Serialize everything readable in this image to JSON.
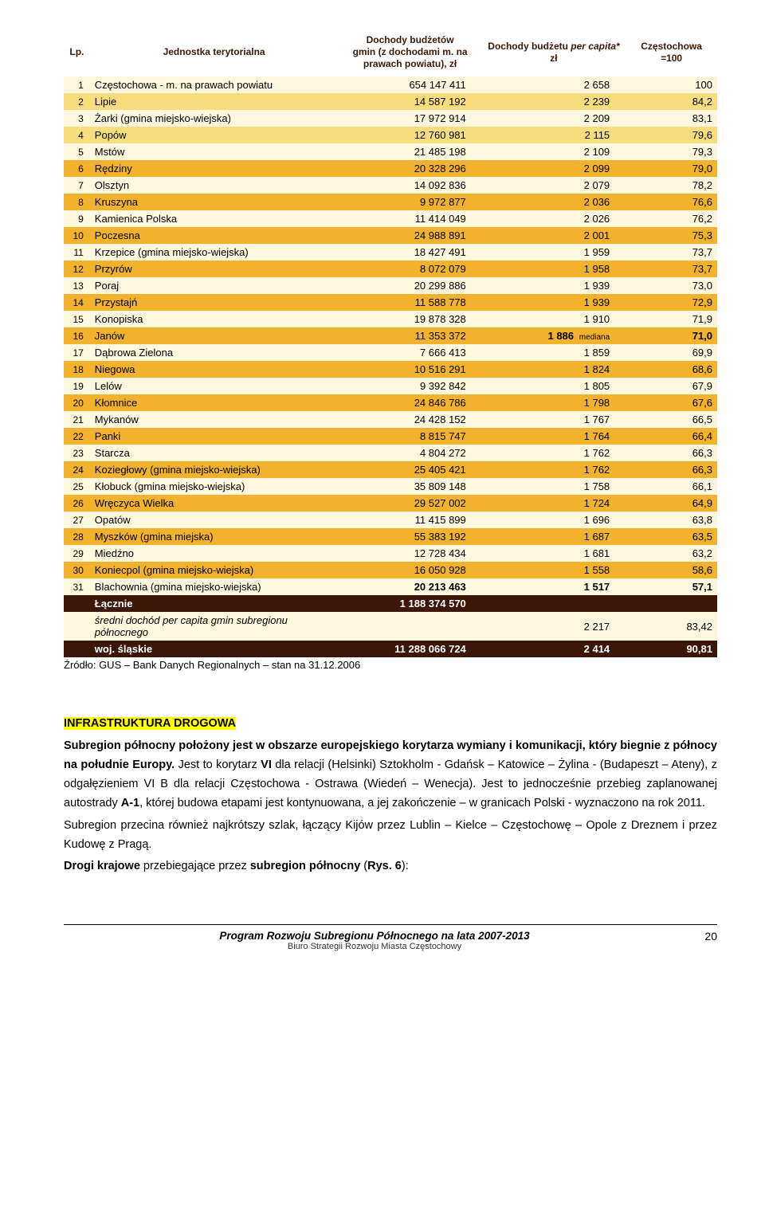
{
  "header": {
    "lp": "Lp.",
    "jednostka": "Jednostka terytorialna",
    "col1_a": "Dochody budżetów",
    "col1_b": "gmin",
    "col1_c": " (z dochodami m. na prawach powiatu), zł",
    "col2_a": "Dochody budżetu ",
    "col2_b": "per capita*",
    "col2_c": "zł",
    "col3_a": "Częstochowa",
    "col3_b": "=100"
  },
  "rows": [
    {
      "lp": "1",
      "name": "Częstochowa - m. na prawach powiatu",
      "v1": "654 147 411",
      "v2": "2 658",
      "v3": "100",
      "shade": "light",
      "boldName": false
    },
    {
      "lp": "2",
      "name": "Lipie",
      "v1": "14 587 192",
      "v2": "2 239",
      "v3": "84,2",
      "shade": "mid"
    },
    {
      "lp": "3",
      "name": "Żarki (gmina miejsko-wiejska)",
      "v1": "17 972 914",
      "v2": "2 209",
      "v3": "83,1",
      "shade": "light"
    },
    {
      "lp": "4",
      "name": "Popów",
      "v1": "12 760 981",
      "v2": "2 115",
      "v3": "79,6",
      "shade": "mid"
    },
    {
      "lp": "5",
      "name": "Mstów",
      "v1": "21 485 198",
      "v2": "2 109",
      "v3": "79,3",
      "shade": "light"
    },
    {
      "lp": "6",
      "name": "Rędziny",
      "v1": "20 328 296",
      "v2": "2 099",
      "v3": "79,0",
      "shade": "dark"
    },
    {
      "lp": "7",
      "name": "Olsztyn",
      "v1": "14 092 836",
      "v2": "2 079",
      "v3": "78,2",
      "shade": "light"
    },
    {
      "lp": "8",
      "name": "Kruszyna",
      "v1": "9 972 877",
      "v2": "2 036",
      "v3": "76,6",
      "shade": "dark"
    },
    {
      "lp": "9",
      "name": "Kamienica Polska",
      "v1": "11 414 049",
      "v2": "2 026",
      "v3": "76,2",
      "shade": "light"
    },
    {
      "lp": "10",
      "name": "Poczesna",
      "v1": "24 988 891",
      "v2": "2 001",
      "v3": "75,3",
      "shade": "dark"
    },
    {
      "lp": "11",
      "name": "Krzepice (gmina miejsko-wiejska)",
      "v1": "18 427 491",
      "v2": "1 959",
      "v3": "73,7",
      "shade": "light"
    },
    {
      "lp": "12",
      "name": "Przyrów",
      "v1": "8 072 079",
      "v2": "1 958",
      "v3": "73,7",
      "shade": "dark"
    },
    {
      "lp": "13",
      "name": "Poraj",
      "v1": "20 299 886",
      "v2": "1 939",
      "v3": "73,0",
      "shade": "light"
    },
    {
      "lp": "14",
      "name": "Przystajń",
      "v1": "11 588 778",
      "v2": "1 939",
      "v3": "72,9",
      "shade": "dark"
    },
    {
      "lp": "15",
      "name": "Konopiska",
      "v1": "19 878 328",
      "v2": "1 910",
      "v3": "71,9",
      "shade": "light"
    },
    {
      "lp": "16",
      "name": "Janów",
      "v1": "11 353 372",
      "v2": "1 886",
      "v2note": "mediana",
      "v3": "71,0",
      "shade": "dark",
      "median": true
    },
    {
      "lp": "17",
      "name": "Dąbrowa Zielona",
      "v1": "7 666 413",
      "v2": "1 859",
      "v3": "69,9",
      "shade": "light"
    },
    {
      "lp": "18",
      "name": "Niegowa",
      "v1": "10 516 291",
      "v2": "1 824",
      "v3": "68,6",
      "shade": "dark"
    },
    {
      "lp": "19",
      "name": "Lelów",
      "v1": "9 392 842",
      "v2": "1 805",
      "v3": "67,9",
      "shade": "light"
    },
    {
      "lp": "20",
      "name": "Kłomnice",
      "v1": "24 846 786",
      "v2": "1 798",
      "v3": "67,6",
      "shade": "dark"
    },
    {
      "lp": "21",
      "name": "Mykanów",
      "v1": "24 428 152",
      "v2": "1 767",
      "v3": "66,5",
      "shade": "light"
    },
    {
      "lp": "22",
      "name": "Panki",
      "v1": "8 815 747",
      "v2": "1 764",
      "v3": "66,4",
      "shade": "dark"
    },
    {
      "lp": "23",
      "name": "Starcza",
      "v1": "4 804 272",
      "v2": "1 762",
      "v3": "66,3",
      "shade": "light"
    },
    {
      "lp": "24",
      "name": "Koziegłowy (gmina miejsko-wiejska)",
      "v1": "25 405 421",
      "v2": "1 762",
      "v3": "66,3",
      "shade": "dark"
    },
    {
      "lp": "25",
      "name": "Kłobuck (gmina miejsko-wiejska)",
      "v1": "35 809 148",
      "v2": "1 758",
      "v3": "66,1",
      "shade": "light"
    },
    {
      "lp": "26",
      "name": "Wręczyca Wielka",
      "v1": "29 527 002",
      "v2": "1 724",
      "v3": "64,9",
      "shade": "dark"
    },
    {
      "lp": "27",
      "name": "Opatów",
      "v1": "11 415 899",
      "v2": "1 696",
      "v3": "63,8",
      "shade": "light"
    },
    {
      "lp": "28",
      "name": "Myszków (gmina miejska)",
      "v1": "55 383 192",
      "v2": "1 687",
      "v3": "63,5",
      "shade": "dark"
    },
    {
      "lp": "29",
      "name": "Miedźno",
      "v1": "12 728 434",
      "v2": "1 681",
      "v3": "63,2",
      "shade": "light"
    },
    {
      "lp": "30",
      "name": "Koniecpol (gmina miejsko-wiejska)",
      "v1": "16 050 928",
      "v2": "1 558",
      "v3": "58,6",
      "shade": "dark"
    },
    {
      "lp": "31",
      "name": "Blachownia (gmina miejsko-wiejska)",
      "v1": "20 213 463",
      "v2": "1 517",
      "v3": "57,1",
      "shade": "light",
      "boldRow": true
    }
  ],
  "sum": {
    "label": "Łącznie",
    "v1": "1 188 374 570"
  },
  "avg": {
    "label_a": "średni dochód ",
    "label_b": "per capita",
    "label_c": " gmin subregionu północnego",
    "v2": "2 217",
    "v3": "83,42"
  },
  "woj": {
    "label": "woj. śląskie",
    "v1": "11 288 066 724",
    "v2": "2 414",
    "v3": "90,81"
  },
  "source": "Źródło: GUS – Bank Danych Regionalnych – stan na 31.12.2006",
  "infra_heading": "INFRASTRUKTURA DROGOWA",
  "para1_a": "Subregion północny położony jest w obszarze europejskiego korytarza wymiany i komunikacji, który biegnie z północy na południe Europy.",
  "para1_b": " Jest to korytarz ",
  "para1_c": "VI",
  "para1_d": " dla relacji (Helsinki) Sztokholm - Gdańsk – Katowice – Żylina - (Budapeszt – Ateny), z odgałęzieniem VI B dla relacji Częstochowa - Ostrawa (Wiedeń – Wenecja). Jest to jednocześnie przebieg zaplanowanej autostrady ",
  "para1_e": "A-1",
  "para1_f": ", której budowa etapami jest kontynuowana, a jej zakończenie – w granicach Polski - wyznaczono na rok 2011.",
  "para2": "Subregion przecina również najkrótszy szlak, łączący Kijów przez Lublin – Kielce – Częstochowę – Opole z Dreznem i przez Kudowę z Pragą.",
  "para3_a": "Drogi krajowe",
  "para3_b": " przebiegające przez ",
  "para3_c": "subregion północny",
  "para3_d": " (",
  "para3_e": "Rys. 6",
  "para3_f": "):",
  "footer": {
    "title": "Program Rozwoju Subregionu Północnego na lata 2007-2013",
    "sub": "Biuro Strategii Rozwoju Miasta Częstochowy",
    "page": "20"
  },
  "colors": {
    "light": "#fdf7dd",
    "mid": "#f8dd7e",
    "dark": "#f2b22e",
    "headText": "#3c1707"
  }
}
